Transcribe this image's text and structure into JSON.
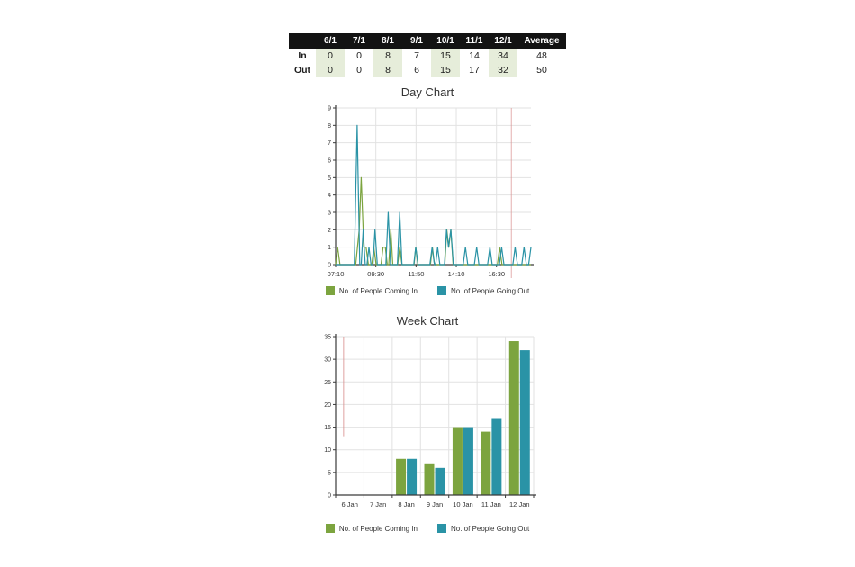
{
  "table": {
    "header": [
      "",
      "6/1",
      "7/1",
      "8/1",
      "9/1",
      "10/1",
      "11/1",
      "12/1",
      "Average"
    ],
    "rows": [
      {
        "label": "In",
        "values": [
          "0",
          "0",
          "8",
          "7",
          "15",
          "14",
          "34",
          "48"
        ]
      },
      {
        "label": "Out",
        "values": [
          "0",
          "0",
          "8",
          "6",
          "15",
          "17",
          "32",
          "50"
        ]
      }
    ],
    "shaded_header_columns": [
      1,
      3,
      5,
      7
    ]
  },
  "colors": {
    "in": "#7CA43F",
    "out": "#2A93A6",
    "marker": "#D9908F",
    "grid": "#e2e2e2",
    "axis": "#3a3a3a",
    "tick_text": "#333333",
    "header_bg": "#131313",
    "shade": "#e6edda"
  },
  "chart_data": [
    {
      "type": "line",
      "title": "Day Chart",
      "xlabel": "",
      "ylabel": "",
      "grid": true,
      "legend_position": "bottom",
      "x_ticks_labels": [
        "07:10",
        "09:30",
        "11:50",
        "14:10",
        "16:30"
      ],
      "x_ticks_minutes": [
        430,
        570,
        710,
        850,
        990
      ],
      "x_range_minutes": [
        430,
        1110
      ],
      "ylim": [
        0,
        9
      ],
      "y_ticks": [
        0,
        1,
        2,
        3,
        4,
        5,
        6,
        7,
        8,
        9
      ],
      "time_marker_minute": 1042,
      "series": [
        {
          "name": "No. of People Coming In",
          "color_key": "in",
          "points_min_val": [
            [
              430,
              0
            ],
            [
              437,
              1
            ],
            [
              445,
              0
            ],
            [
              500,
              0
            ],
            [
              512,
              2
            ],
            [
              519,
              5
            ],
            [
              528,
              1
            ],
            [
              536,
              1
            ],
            [
              544,
              0
            ],
            [
              556,
              0
            ],
            [
              563,
              1
            ],
            [
              571,
              0
            ],
            [
              588,
              0
            ],
            [
              595,
              1
            ],
            [
              603,
              1
            ],
            [
              610,
              0
            ],
            [
              615,
              0
            ],
            [
              622,
              2
            ],
            [
              629,
              0
            ],
            [
              646,
              0
            ],
            [
              653,
              1
            ],
            [
              661,
              0
            ],
            [
              703,
              0
            ],
            [
              709,
              1
            ],
            [
              716,
              0
            ],
            [
              760,
              0
            ],
            [
              767,
              1
            ],
            [
              774,
              0
            ],
            [
              810,
              0
            ],
            [
              817,
              2
            ],
            [
              824,
              1
            ],
            [
              831,
              2
            ],
            [
              839,
              0
            ],
            [
              993,
              0
            ],
            [
              1001,
              1
            ],
            [
              1009,
              0
            ],
            [
              1110,
              0
            ]
          ]
        },
        {
          "name": "No. of People Going Out",
          "color_key": "out",
          "points_min_val": [
            [
              430,
              0
            ],
            [
              495,
              0
            ],
            [
              505,
              8
            ],
            [
              514,
              0
            ],
            [
              519,
              0
            ],
            [
              526,
              2
            ],
            [
              533,
              0
            ],
            [
              539,
              0
            ],
            [
              546,
              1
            ],
            [
              553,
              0
            ],
            [
              560,
              0
            ],
            [
              567,
              2
            ],
            [
              575,
              0
            ],
            [
              605,
              0
            ],
            [
              613,
              3
            ],
            [
              621,
              0
            ],
            [
              645,
              0
            ],
            [
              653,
              3
            ],
            [
              661,
              0
            ],
            [
              702,
              0
            ],
            [
              709,
              1
            ],
            [
              717,
              0
            ],
            [
              758,
              0
            ],
            [
              766,
              1
            ],
            [
              774,
              0
            ],
            [
              778,
              0
            ],
            [
              785,
              1
            ],
            [
              793,
              0
            ],
            [
              809,
              0
            ],
            [
              816,
              2
            ],
            [
              823,
              1
            ],
            [
              831,
              2
            ],
            [
              840,
              0
            ],
            [
              874,
              0
            ],
            [
              882,
              1
            ],
            [
              890,
              0
            ],
            [
              913,
              0
            ],
            [
              921,
              1
            ],
            [
              929,
              0
            ],
            [
              959,
              0
            ],
            [
              967,
              1
            ],
            [
              975,
              0
            ],
            [
              1000,
              0
            ],
            [
              1008,
              1
            ],
            [
              1016,
              0
            ],
            [
              1047,
              0
            ],
            [
              1055,
              1
            ],
            [
              1063,
              0
            ],
            [
              1078,
              0
            ],
            [
              1086,
              1
            ],
            [
              1094,
              0
            ],
            [
              1102,
              0
            ],
            [
              1110,
              1
            ]
          ]
        }
      ]
    },
    {
      "type": "bar",
      "title": "Week Chart",
      "xlabel": "",
      "ylabel": "",
      "grid": true,
      "legend_position": "bottom",
      "categories": [
        "6 Jan",
        "7 Jan",
        "8 Jan",
        "9 Jan",
        "10 Jan",
        "11 Jan",
        "12 Jan"
      ],
      "ylim": [
        0,
        35
      ],
      "y_ticks": [
        0,
        5,
        10,
        15,
        20,
        25,
        30,
        35
      ],
      "series": [
        {
          "name": "No. of People Coming In",
          "color_key": "in",
          "values": [
            0,
            0,
            8,
            7,
            15,
            14,
            34
          ]
        },
        {
          "name": "No. of People Going Out",
          "color_key": "out",
          "values": [
            0,
            0,
            8,
            6,
            15,
            17,
            32
          ]
        }
      ],
      "marker": {
        "x_fraction": 0.04,
        "y_from": 35,
        "y_to": 13
      }
    }
  ]
}
